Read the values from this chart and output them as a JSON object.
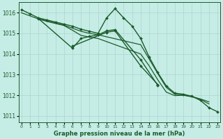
{
  "xlabel": "Graphe pression niveau de la mer (hPa)",
  "bg_color": "#c6ece6",
  "grid_color": "#b0d8d0",
  "line_color": "#1a5c2a",
  "ylim": [
    1010.7,
    1016.5
  ],
  "xlim": [
    -0.3,
    23.3
  ],
  "yticks": [
    1011,
    1012,
    1013,
    1014,
    1015,
    1016
  ],
  "xticks": [
    0,
    1,
    2,
    3,
    4,
    5,
    6,
    7,
    8,
    9,
    10,
    11,
    12,
    13,
    14,
    15,
    16,
    17,
    18,
    19,
    20,
    21,
    22,
    23
  ],
  "series": [
    {
      "x": [
        0,
        1,
        2,
        3,
        4,
        5,
        6,
        7,
        8,
        9,
        10,
        11,
        12,
        13,
        14,
        15,
        16,
        17,
        18,
        19,
        20,
        21,
        22,
        23
      ],
      "y": [
        1016.15,
        1015.95,
        1015.75,
        1015.65,
        1015.55,
        1015.45,
        1015.35,
        1015.2,
        1015.1,
        1015.0,
        1015.75,
        1016.2,
        1015.75,
        1015.35,
        1014.75,
        1013.85,
        1013.1,
        1012.45,
        1012.1,
        1012.05,
        1011.95,
        1011.75,
        1011.4,
        1011.2
      ],
      "marker": true,
      "lw": 1.0
    },
    {
      "x": [
        0,
        1,
        2,
        3,
        4,
        5,
        6,
        7,
        8,
        9,
        14,
        15,
        16,
        17,
        18,
        19,
        20,
        21,
        22
      ],
      "y": [
        1016.0,
        1015.85,
        1015.7,
        1015.6,
        1015.5,
        1015.4,
        1015.25,
        1015.1,
        1015.0,
        1014.93,
        1014.45,
        1013.75,
        1013.05,
        1012.38,
        1012.05,
        1012.0,
        1011.95,
        1011.8,
        1011.58
      ],
      "marker": false,
      "lw": 0.9
    },
    {
      "x": [
        2,
        3,
        4,
        5,
        6,
        7,
        8,
        9,
        14,
        15,
        16,
        17,
        18,
        19,
        20,
        21,
        22
      ],
      "y": [
        1015.7,
        1015.58,
        1015.48,
        1015.38,
        1015.15,
        1014.9,
        1014.82,
        1014.75,
        1014.0,
        1013.42,
        1012.75,
        1012.15,
        1011.98,
        1012.0,
        1011.92,
        1011.82,
        1011.68
      ],
      "marker": false,
      "lw": 0.9
    },
    {
      "x": [
        2,
        6,
        7,
        8,
        9,
        10,
        11,
        14,
        16
      ],
      "y": [
        1015.72,
        1014.28,
        1014.75,
        1014.85,
        1014.92,
        1015.12,
        1015.18,
        1013.72,
        1012.48
      ],
      "marker": true,
      "lw": 1.0
    },
    {
      "x": [
        6,
        10,
        11,
        14,
        16
      ],
      "y": [
        1014.38,
        1015.05,
        1015.12,
        1013.42,
        1012.52
      ],
      "marker": true,
      "lw": 1.0
    }
  ]
}
